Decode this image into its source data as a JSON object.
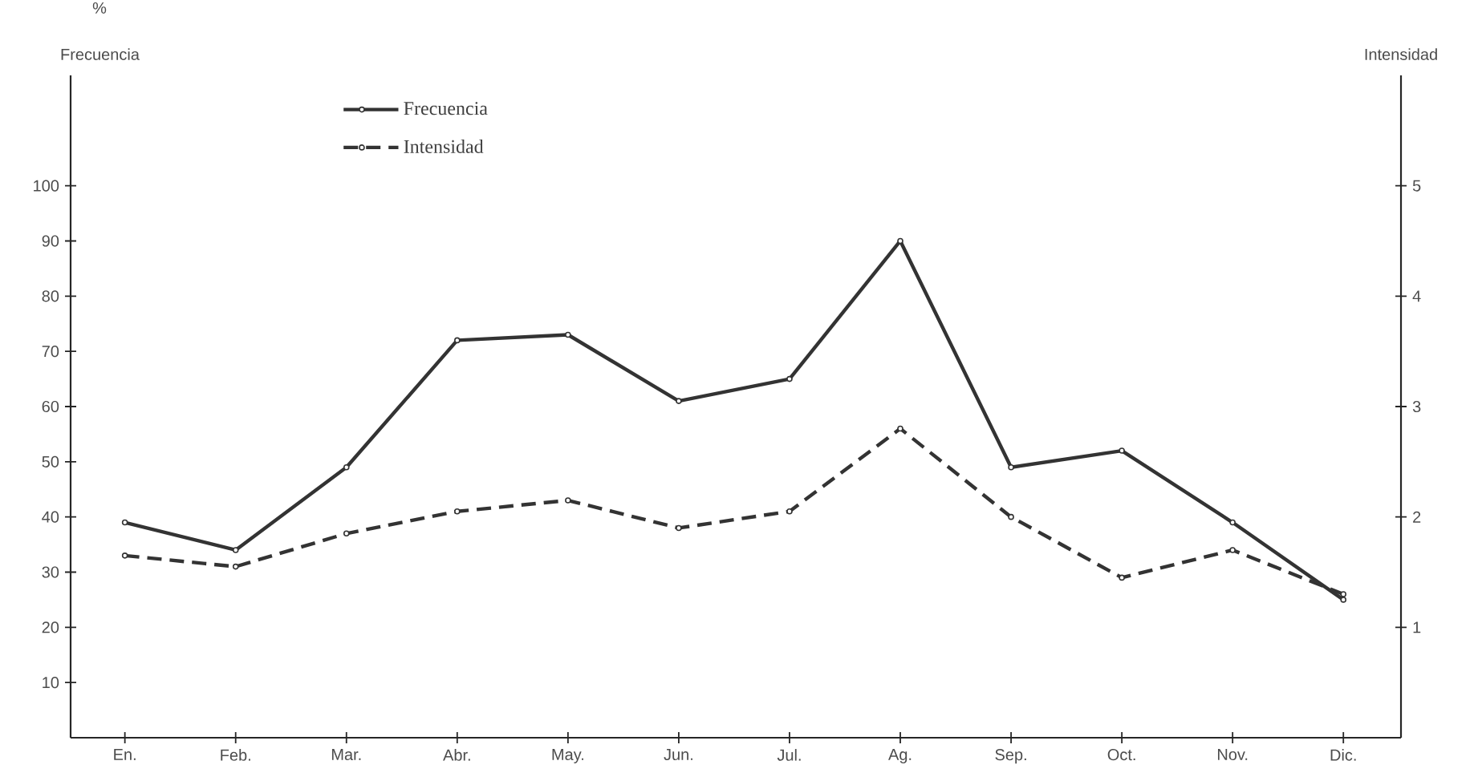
{
  "chart_data": {
    "type": "line",
    "categories": [
      "En.",
      "Feb.",
      "Mar.",
      "Abr.",
      "May.",
      "Jun.",
      "Jul.",
      "Ag.",
      "Sep.",
      "Oct.",
      "Nov.",
      "Dic."
    ],
    "series": [
      {
        "name": "Frecuencia",
        "color": "#333333",
        "line_style": "solid",
        "values": [
          39,
          34,
          49,
          72,
          73,
          61,
          65,
          90,
          49,
          52,
          39,
          25
        ]
      },
      {
        "name": "Intensidad",
        "color": "#333333",
        "line_style": "dashed",
        "axis": "y2",
        "values": [
          1.65,
          1.55,
          1.85,
          2.05,
          2.15,
          1.9,
          2.05,
          2.8,
          2.0,
          1.45,
          1.7,
          1.3
        ]
      }
    ],
    "ylabel": "Frecuencia",
    "y2label": "Intensidad",
    "annotations": [
      "%"
    ],
    "ylim": [
      0,
      120
    ],
    "yticks": [
      10,
      20,
      30,
      40,
      50,
      60,
      70,
      80,
      90,
      100
    ],
    "y2lim": [
      0,
      6
    ],
    "y2ticks": [
      1,
      2,
      3,
      4,
      5
    ],
    "marker": "circle",
    "legend": "top left"
  }
}
